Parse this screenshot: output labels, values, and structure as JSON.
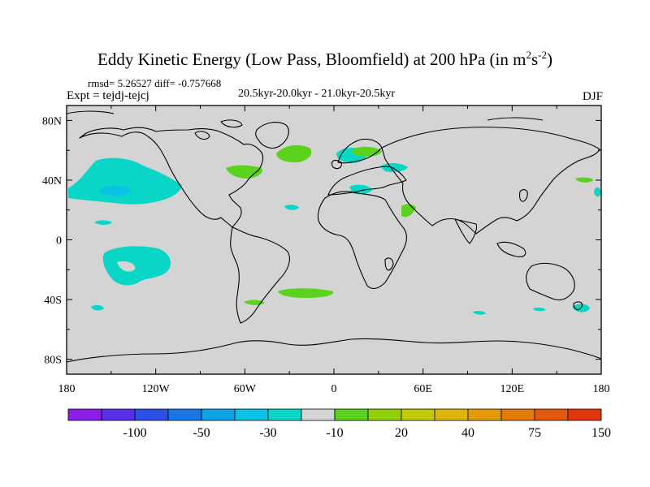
{
  "title": {
    "main": "Eddy Kinetic Energy (Low Pass, Bloomfield) at 200 hPa (in m",
    "exp1": "2",
    "mid": "s",
    "exp2": "-2",
    "close": ")"
  },
  "stats": {
    "rmsd": "rmsd= 5.26527",
    "diff": "diff= -0.757668"
  },
  "expt_label": "Expt = tejdj-tejcj",
  "period_label": "20.5kyr-20.0kyr - 21.0kyr-20.5kyr",
  "season": "DJF",
  "map": {
    "projection": "cylindrical-equidistant",
    "lon_range": [
      -180,
      180
    ],
    "lat_range": [
      -90,
      90
    ],
    "lat_ticks": [
      "80N",
      "40N",
      "0",
      "40S",
      "80S"
    ],
    "lon_ticks": [
      "180",
      "120W",
      "60W",
      "0",
      "60E",
      "120E",
      "180"
    ],
    "background_color": "#d4d4d4",
    "coastline_color": "#000000"
  },
  "colorbar": {
    "colors": [
      "#8a1ee6",
      "#5a2ee6",
      "#2a50e6",
      "#1a78e6",
      "#0ea2e6",
      "#0ac2e6",
      "#0ad6c8",
      "#d4d4d4",
      "#5ad21e",
      "#92d00a",
      "#c2ca0a",
      "#dcb60a",
      "#e49a0a",
      "#e47a0a",
      "#e2580c",
      "#e0380c"
    ],
    "labels": [
      "-100",
      "-50",
      "-30",
      "-10",
      "20",
      "40",
      "75",
      "150"
    ]
  },
  "anomaly_regions": [
    {
      "name": "north-pacific-decrease",
      "sign": "negative",
      "level": "-10"
    },
    {
      "name": "north-pacific-core",
      "sign": "negative",
      "level": "-30"
    },
    {
      "name": "north-atlantic-increase",
      "sign": "positive",
      "level": "20"
    },
    {
      "name": "northeast-us-increase",
      "sign": "positive",
      "level": "20"
    },
    {
      "name": "scandinavia-decrease",
      "sign": "negative",
      "level": "-10"
    },
    {
      "name": "scandinavia-increase",
      "sign": "positive",
      "level": "20"
    },
    {
      "name": "south-pacific-decrease",
      "sign": "negative",
      "level": "-10"
    },
    {
      "name": "south-atlantic-increase",
      "sign": "positive",
      "level": "20"
    },
    {
      "name": "new-zealand-decrease",
      "sign": "negative",
      "level": "-10"
    }
  ]
}
